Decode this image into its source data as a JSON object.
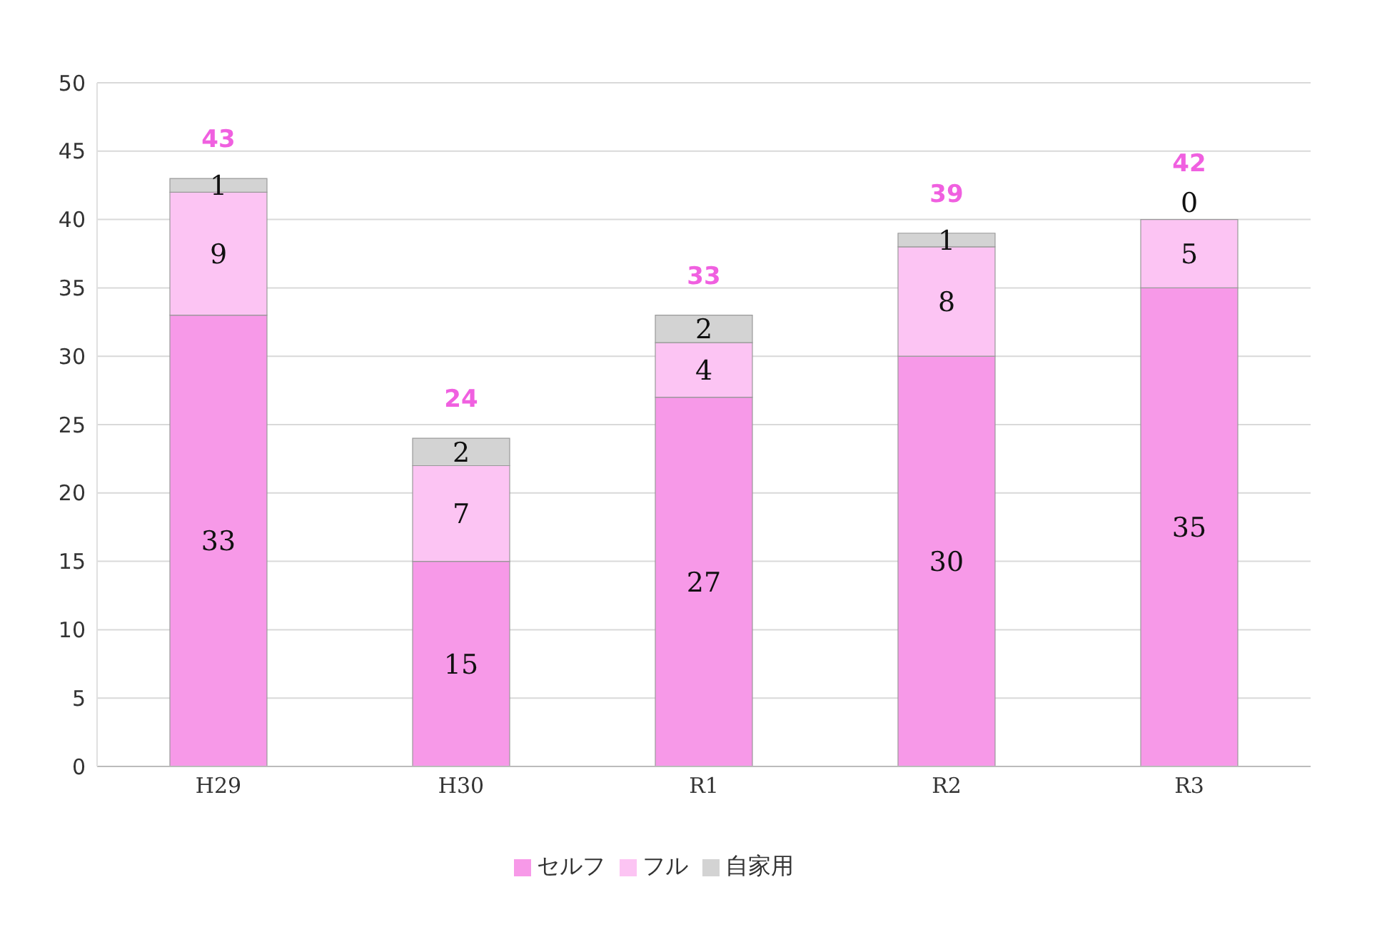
{
  "chart_data": {
    "type": "bar",
    "stacked": true,
    "categories": [
      "H29",
      "H30",
      "R1",
      "R2",
      "R3"
    ],
    "series": [
      {
        "name": "セルフ",
        "color": "#f799e8",
        "values": [
          33,
          15,
          27,
          30,
          35
        ]
      },
      {
        "name": "フル",
        "color": "#fcc4f3",
        "values": [
          9,
          7,
          4,
          8,
          5
        ]
      },
      {
        "name": "自家用",
        "color": "#d3d3d3",
        "values": [
          1,
          2,
          2,
          1,
          0
        ]
      }
    ],
    "totals": [
      "43",
      "24",
      "33",
      "39",
      "42"
    ],
    "data_labels": true,
    "ylim": [
      0,
      50
    ],
    "yticks": [
      0,
      5,
      10,
      15,
      20,
      25,
      30,
      35,
      40,
      45,
      50
    ],
    "grid": "y",
    "legend": "bottom"
  }
}
